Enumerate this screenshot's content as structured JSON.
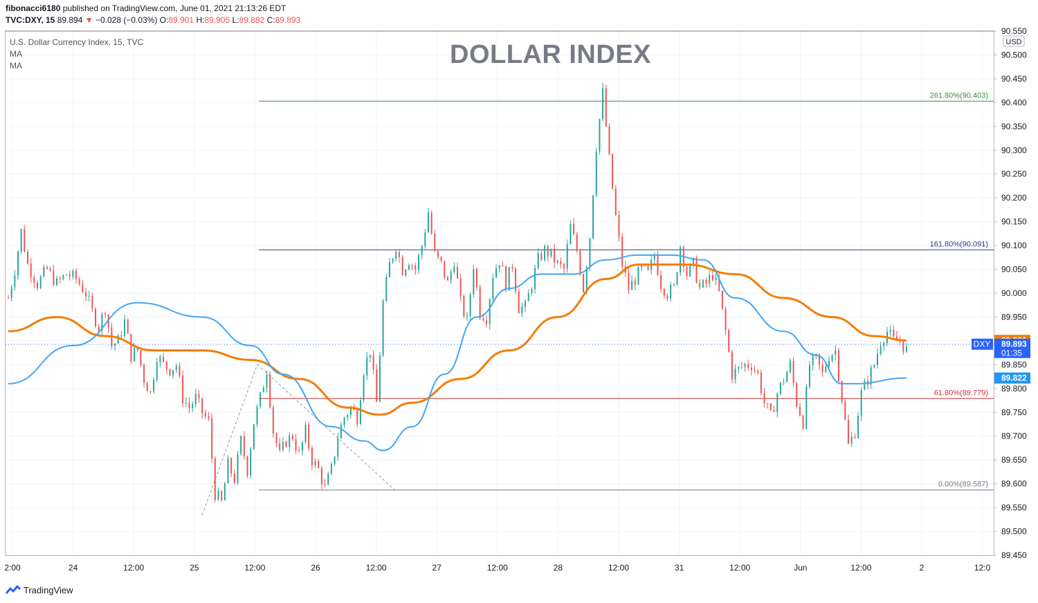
{
  "header": {
    "publisher": "fibonacci6180",
    "published_text": "published on TradingView.com, June 01, 2021 21:13:26 EDT"
  },
  "ohlc": {
    "symbol": "TVC:DXY, 15",
    "last": "89.894",
    "arrow": "▼",
    "change": "−0.028 (−0.03%)",
    "o_label": "O:",
    "o": "89.901",
    "h_label": "H:",
    "h": "89.905",
    "l_label": "L:",
    "l": "89.882",
    "c_label": "C:",
    "c": "89.893"
  },
  "legend": {
    "name": "U.S. Dollar Currency Index, 15, TVC",
    "ma1": "MA",
    "ma2": "MA"
  },
  "footer": {
    "brand": "TradingView"
  },
  "chart_data": {
    "type": "candlestick",
    "title": "DOLLAR INDEX",
    "currency": "USD",
    "ylim": [
      89.45,
      90.55
    ],
    "y_ticks": [
      "90.550",
      "90.500",
      "90.450",
      "90.400",
      "90.350",
      "90.300",
      "90.250",
      "90.200",
      "90.150",
      "90.100",
      "90.050",
      "90.000",
      "89.950",
      "89.900",
      "89.850",
      "89.800",
      "89.750",
      "89.700",
      "89.650",
      "89.600",
      "89.550",
      "89.500",
      "89.450"
    ],
    "x_ticks": [
      "2:00",
      "24",
      "12:00",
      "25",
      "12:00",
      "26",
      "12:00",
      "27",
      "12:00",
      "28",
      "12:00",
      "31",
      "12:00",
      "Jun",
      "12:00",
      "2",
      "12:0"
    ],
    "fib_levels": [
      {
        "label": "261.80%(90.403)",
        "value": 90.403,
        "color": "#388e3c"
      },
      {
        "label": "161.80%(90.091)",
        "value": 90.091,
        "color": "#283593"
      },
      {
        "label": "61.80%(89.779)",
        "value": 89.779,
        "color": "#d32f2f"
      },
      {
        "label": "0.00%(89.587)",
        "value": 89.587,
        "color": "#787b86"
      }
    ],
    "price_tags": [
      {
        "label": "89.901",
        "value": 89.901,
        "color": "#f57c00"
      },
      {
        "label": "89.893",
        "value": 89.893,
        "color": "#2962ff",
        "prefix": "DXY",
        "countdown": "01:35"
      },
      {
        "label": "89.822",
        "value": 89.822,
        "color": "#2196f3"
      }
    ],
    "close_path": [
      [
        0,
        89.99
      ],
      [
        2,
        90.05
      ],
      [
        4,
        90.13
      ],
      [
        6,
        90.06
      ],
      [
        9,
        90.02
      ],
      [
        12,
        90.05
      ],
      [
        15,
        90.02
      ],
      [
        18,
        90.04
      ],
      [
        21,
        90.03
      ],
      [
        24,
        90.0
      ],
      [
        26,
        89.96
      ],
      [
        28,
        89.93
      ],
      [
        30,
        89.97
      ],
      [
        32,
        89.89
      ],
      [
        34,
        89.9
      ],
      [
        36,
        89.94
      ],
      [
        38,
        89.87
      ],
      [
        40,
        89.88
      ],
      [
        42,
        89.82
      ],
      [
        44,
        89.79
      ],
      [
        46,
        89.87
      ],
      [
        48,
        89.85
      ],
      [
        50,
        89.84
      ],
      [
        52,
        89.85
      ],
      [
        54,
        89.78
      ],
      [
        56,
        89.76
      ],
      [
        58,
        89.78
      ],
      [
        60,
        89.75
      ],
      [
        62,
        89.73
      ],
      [
        64,
        89.58
      ],
      [
        66,
        89.56
      ],
      [
        68,
        89.64
      ],
      [
        70,
        89.61
      ],
      [
        72,
        89.69
      ],
      [
        74,
        89.63
      ],
      [
        76,
        89.73
      ],
      [
        78,
        89.78
      ],
      [
        80,
        89.84
      ],
      [
        82,
        89.71
      ],
      [
        84,
        89.66
      ],
      [
        86,
        89.69
      ],
      [
        88,
        89.7
      ],
      [
        90,
        89.66
      ],
      [
        92,
        89.71
      ],
      [
        94,
        89.65
      ],
      [
        96,
        89.63
      ],
      [
        98,
        89.59
      ],
      [
        100,
        89.63
      ],
      [
        102,
        89.7
      ],
      [
        104,
        89.74
      ],
      [
        106,
        89.76
      ],
      [
        108,
        89.74
      ],
      [
        110,
        89.84
      ],
      [
        112,
        89.88
      ],
      [
        114,
        89.77
      ],
      [
        116,
        89.98
      ],
      [
        118,
        90.06
      ],
      [
        120,
        90.1
      ],
      [
        122,
        90.05
      ],
      [
        124,
        90.07
      ],
      [
        126,
        90.05
      ],
      [
        128,
        90.1
      ],
      [
        130,
        90.17
      ],
      [
        132,
        90.08
      ],
      [
        134,
        90.06
      ],
      [
        136,
        90.02
      ],
      [
        138,
        90.07
      ],
      [
        140,
        89.98
      ],
      [
        142,
        89.94
      ],
      [
        144,
        90.06
      ],
      [
        146,
        89.96
      ],
      [
        148,
        89.95
      ],
      [
        150,
        90.04
      ],
      [
        152,
        90.07
      ],
      [
        154,
        90.02
      ],
      [
        156,
        90.06
      ],
      [
        158,
        89.97
      ],
      [
        160,
        89.97
      ],
      [
        162,
        90.02
      ],
      [
        164,
        90.07
      ],
      [
        166,
        90.09
      ],
      [
        168,
        90.08
      ],
      [
        170,
        90.06
      ],
      [
        172,
        90.05
      ],
      [
        174,
        90.14
      ],
      [
        176,
        90.09
      ],
      [
        178,
        90.01
      ],
      [
        180,
        90.12
      ],
      [
        182,
        90.31
      ],
      [
        184,
        90.42
      ],
      [
        186,
        90.28
      ],
      [
        188,
        90.16
      ],
      [
        190,
        90.06
      ],
      [
        192,
        90.01
      ],
      [
        194,
        90.03
      ],
      [
        196,
        90.05
      ],
      [
        198,
        90.04
      ],
      [
        200,
        90.08
      ],
      [
        202,
        90.02
      ],
      [
        204,
        90.0
      ],
      [
        206,
        90.01
      ],
      [
        208,
        90.1
      ],
      [
        210,
        90.04
      ],
      [
        212,
        90.06
      ],
      [
        214,
        90.01
      ],
      [
        216,
        90.02
      ],
      [
        218,
        90.04
      ],
      [
        220,
        90.0
      ],
      [
        222,
        89.92
      ],
      [
        224,
        89.83
      ],
      [
        226,
        89.84
      ],
      [
        228,
        89.85
      ],
      [
        230,
        89.85
      ],
      [
        232,
        89.83
      ],
      [
        234,
        89.77
      ],
      [
        236,
        89.74
      ],
      [
        238,
        89.79
      ],
      [
        240,
        89.82
      ],
      [
        242,
        89.85
      ],
      [
        244,
        89.77
      ],
      [
        246,
        89.73
      ],
      [
        248,
        89.85
      ],
      [
        250,
        89.86
      ],
      [
        252,
        89.83
      ],
      [
        254,
        89.87
      ],
      [
        256,
        89.88
      ],
      [
        258,
        89.78
      ],
      [
        260,
        89.68
      ],
      [
        262,
        89.71
      ],
      [
        264,
        89.79
      ],
      [
        266,
        89.82
      ],
      [
        268,
        89.85
      ],
      [
        270,
        89.9
      ],
      [
        272,
        89.92
      ],
      [
        274,
        89.9
      ],
      [
        276,
        89.9
      ],
      [
        278,
        89.88
      ]
    ],
    "ma_fast": [
      [
        0,
        89.81
      ],
      [
        20,
        89.89
      ],
      [
        40,
        89.98
      ],
      [
        60,
        89.95
      ],
      [
        75,
        89.89
      ],
      [
        85,
        89.83
      ],
      [
        100,
        89.72
      ],
      [
        110,
        89.69
      ],
      [
        116,
        89.67
      ],
      [
        125,
        89.72
      ],
      [
        135,
        89.83
      ],
      [
        145,
        89.95
      ],
      [
        155,
        90.01
      ],
      [
        165,
        90.04
      ],
      [
        175,
        90.04
      ],
      [
        185,
        90.07
      ],
      [
        195,
        90.08
      ],
      [
        205,
        90.08
      ],
      [
        215,
        90.07
      ],
      [
        225,
        89.99
      ],
      [
        240,
        89.92
      ],
      [
        250,
        89.87
      ],
      [
        258,
        89.81
      ],
      [
        262,
        89.81
      ],
      [
        278,
        89.822
      ]
    ],
    "ma_slow": [
      [
        0,
        89.92
      ],
      [
        15,
        89.95
      ],
      [
        30,
        89.91
      ],
      [
        45,
        89.88
      ],
      [
        60,
        89.88
      ],
      [
        75,
        89.86
      ],
      [
        90,
        89.82
      ],
      [
        105,
        89.76
      ],
      [
        115,
        89.745
      ],
      [
        125,
        89.77
      ],
      [
        140,
        89.82
      ],
      [
        155,
        89.88
      ],
      [
        170,
        89.95
      ],
      [
        185,
        90.03
      ],
      [
        195,
        90.06
      ],
      [
        210,
        90.06
      ],
      [
        225,
        90.04
      ],
      [
        240,
        89.99
      ],
      [
        255,
        89.95
      ],
      [
        268,
        89.91
      ],
      [
        278,
        89.901
      ]
    ]
  }
}
